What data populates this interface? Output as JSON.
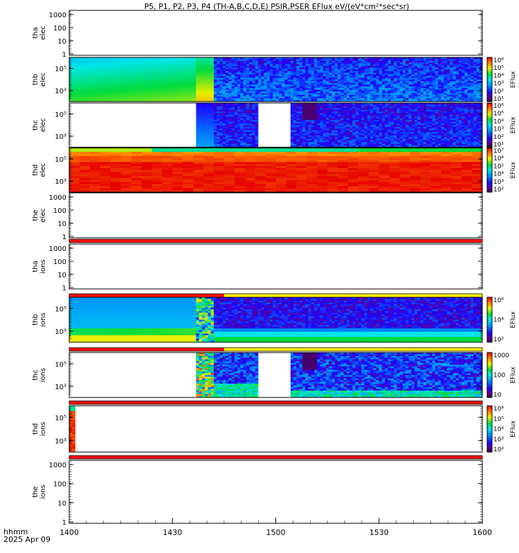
{
  "title": "P5, P1, P2, P3, P4 (TH-A,B,C,D,E) PSIR,PSER EFlux eV/(eV*cm²*sec*sr)",
  "chart_data": {
    "type": "heatmap",
    "title": "P5, P1, P2, P3, P4 (TH-A,B,C,D,E) PSIR,PSER EFlux eV/(eV*cm²*sec*sr)",
    "x_tick_labels": [
      "1400",
      "1430",
      "1500",
      "1530",
      "1600"
    ],
    "x_range_minutes": [
      0,
      120
    ],
    "x_label_line1": "hhmm",
    "x_label_line2": "2025 Apr 09",
    "colorbar_label": "EFlux",
    "panels": [
      {
        "name": "tha elec",
        "line1": "tha",
        "line2": "elec",
        "kind": "empty",
        "y_ticks": [
          "1000",
          "100",
          "10",
          "1"
        ]
      },
      {
        "name": "thb elec",
        "line1": "thb",
        "line2": "elec",
        "kind": "spec",
        "variant": "thb_elec",
        "y_ticks": [
          "10⁵",
          "10³"
        ],
        "cbar_ticks": [
          "10⁶",
          "10⁵",
          "10⁴",
          "10³",
          "10²",
          "10¹"
        ],
        "cbar_log_range": [
          0.5,
          6.3
        ]
      },
      {
        "name": "thc elec",
        "line1": "thc",
        "line2": "elec",
        "kind": "spec",
        "variant": "thc_elec",
        "y_ticks": [
          "10⁵",
          "10³"
        ],
        "cbar_ticks": [
          "10⁶",
          "10⁵",
          "10⁴",
          "10³",
          "10²",
          "10¹"
        ],
        "cbar_log_range": [
          0.5,
          6.3
        ]
      },
      {
        "name": "thd elec",
        "line1": "thd",
        "line2": "elec",
        "kind": "spec",
        "variant": "thd_elec",
        "y_ticks": [
          "10⁵",
          "10³"
        ],
        "cbar_ticks": [
          "10⁷",
          "10⁶",
          "10⁵",
          "10⁴",
          "10³",
          "10²"
        ],
        "cbar_log_range": [
          1.6,
          7.3
        ]
      },
      {
        "name": "the elec",
        "line1": "the",
        "line2": "elec",
        "kind": "empty",
        "y_ticks": [
          "1000",
          "100",
          "10",
          "1"
        ]
      },
      {
        "name": "tha ions",
        "line1": "tha",
        "line2": "ions",
        "kind": "empty",
        "y_ticks": [
          "1000",
          "100",
          "10",
          "1"
        ]
      },
      {
        "name": "thb ions",
        "line1": "thb",
        "line2": "ions",
        "kind": "spec",
        "variant": "thb_ions",
        "y_ticks": [
          "10⁵",
          "10³"
        ],
        "cbar_ticks": [
          "10⁶",
          "10⁴",
          "10²"
        ],
        "cbar_log_range": [
          1.3,
          7.0
        ]
      },
      {
        "name": "thc ions",
        "line1": "thc",
        "line2": "ions",
        "kind": "spec",
        "variant": "thc_ions",
        "y_ticks": [
          "10⁵",
          "10³"
        ],
        "cbar_ticks": [
          "1000",
          "100",
          "10"
        ],
        "cbar_log_range": [
          0.5,
          3.6
        ]
      },
      {
        "name": "thd ions",
        "line1": "thd",
        "line2": "ions",
        "kind": "spec",
        "variant": "thd_ions",
        "y_ticks": [
          "10⁵",
          "10³"
        ],
        "cbar_ticks": [
          "10⁶",
          "10⁵",
          "10⁴",
          "10³",
          "10²"
        ],
        "cbar_log_range": [
          1.6,
          6.6
        ]
      },
      {
        "name": "the ions",
        "line1": "the",
        "line2": "ions",
        "kind": "empty",
        "y_ticks": [
          "1000",
          "100",
          "10",
          "1"
        ]
      }
    ],
    "strips": [
      {
        "name": "strip-after-the-elec",
        "segments": [
          {
            "from": 0,
            "to": 120,
            "color": "#ff1010"
          }
        ]
      },
      {
        "name": "strip-after-tha-ions",
        "segments": [
          {
            "from": 0,
            "to": 45,
            "color": "#ff1010"
          },
          {
            "from": 45,
            "to": 120,
            "color": "#ffee00"
          }
        ]
      },
      {
        "name": "strip-after-thb-ions",
        "segments": [
          {
            "from": 0,
            "to": 45,
            "color": "#ff1010"
          },
          {
            "from": 45,
            "to": 120,
            "color": "#ffee00"
          }
        ]
      },
      {
        "name": "strip-after-thc-ions",
        "segments": [
          {
            "from": 0,
            "to": 120,
            "color": "#ff1010"
          }
        ]
      },
      {
        "name": "strip-after-thd-ions",
        "segments": [
          {
            "from": 0,
            "to": 120,
            "color": "#ff1010"
          }
        ]
      }
    ]
  }
}
